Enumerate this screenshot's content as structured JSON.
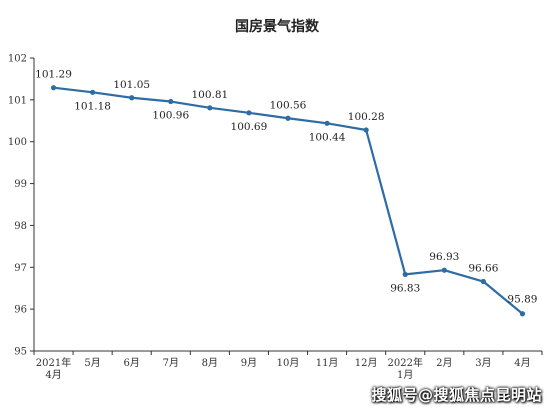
{
  "chart_data": {
    "type": "line",
    "title": "国房景气指数",
    "x": [
      "2021年\n4月",
      "5月",
      "6月",
      "7月",
      "8月",
      "9月",
      "10月",
      "11月",
      "12月",
      "2022年\n1月",
      "2月",
      "3月",
      "4月"
    ],
    "series": [
      {
        "values": [
          101.29,
          101.18,
          101.05,
          100.96,
          100.81,
          100.69,
          100.56,
          100.44,
          100.28,
          96.83,
          96.93,
          96.66,
          95.89
        ],
        "color": "#2e6ca4"
      }
    ],
    "data_labels": [
      "101.29",
      "101.18",
      "101.05",
      "100.96",
      "100.81",
      "100.69",
      "100.56",
      "100.44",
      "100.28",
      "96.83",
      "96.93",
      "96.66",
      "95.89"
    ],
    "ylim": [
      95,
      102
    ],
    "yticks": [
      "95",
      "96",
      "97",
      "98",
      "99",
      "100",
      "101",
      "102"
    ],
    "grid": false,
    "xlabel": "",
    "ylabel": ""
  },
  "watermark": "搜狐号@搜狐焦点昆明站"
}
